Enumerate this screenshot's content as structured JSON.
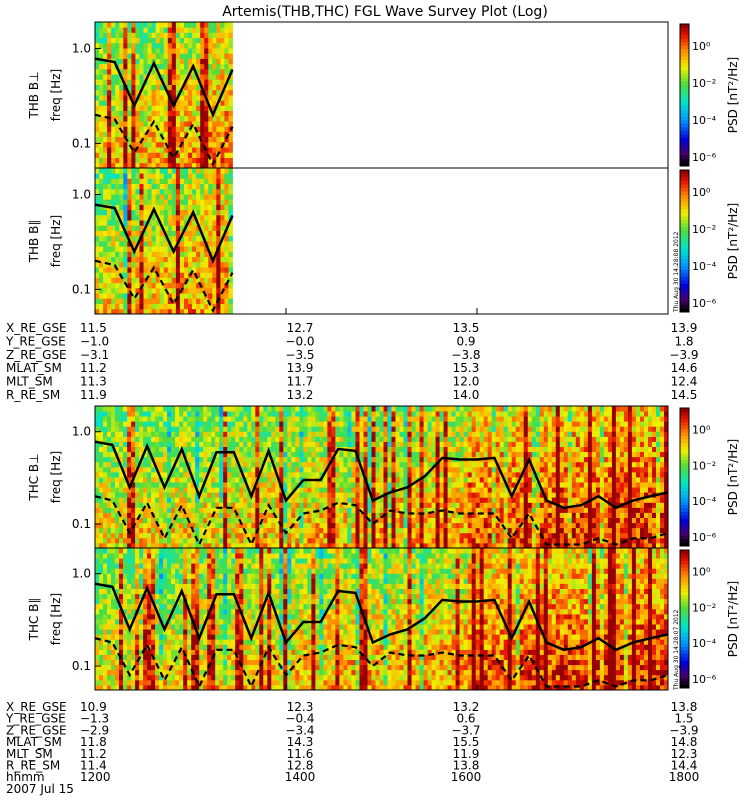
{
  "title": "Artemis(THB,THC) FGL Wave Survey Plot (Log)",
  "colorbar": {
    "label": "PSD [nT²/Hz]",
    "ticks": [
      "10⁰",
      "10⁻²",
      "10⁻⁴",
      "10⁻⁶"
    ],
    "tick_values": [
      0,
      -2,
      -4,
      -6
    ],
    "range_log10": [
      -6.5,
      1.2
    ]
  },
  "freq_axis": {
    "ylabel": "freq [Hz]",
    "ticks": [
      "1.0",
      "0.1"
    ],
    "tick_values": [
      1.0,
      0.1
    ],
    "ylim": [
      0.055,
      1.9
    ],
    "scale": "log"
  },
  "panels": [
    {
      "name": "THB B⊥",
      "ylabel": "THB B⊥",
      "data_fraction": 0.24
    },
    {
      "name": "THB B∥",
      "ylabel": "THB B∥",
      "data_fraction": 0.24
    },
    {
      "name": "THC B⊥",
      "ylabel": "THC B⊥",
      "data_fraction": 1.0
    },
    {
      "name": "THC B∥",
      "ylabel": "THC B∥",
      "data_fraction": 1.0
    }
  ],
  "stamps": [
    "Thu Aug 30 14:28:08 2012",
    "Thu Aug 30 14:28:07 2012"
  ],
  "ephem_thb": {
    "rows": [
      [
        "X_RE_GSE",
        "11.5",
        "12.7",
        "13.5",
        "13.9"
      ],
      [
        "Y_RE_GSE",
        "−1.0",
        "−0.0",
        "0.9",
        "1.8"
      ],
      [
        "Z_RE_GSE",
        "−3.1",
        "−3.5",
        "−3.8",
        "−3.9"
      ],
      [
        "MLAT_SM",
        "11.2",
        "13.9",
        "15.3",
        "14.6"
      ],
      [
        "MLT_SM",
        "11.3",
        "11.7",
        "12.0",
        "12.4"
      ],
      [
        "R_RE_SM",
        "11.9",
        "13.2",
        "14.0",
        "14.5"
      ]
    ]
  },
  "ephem_thc": {
    "rows": [
      [
        "X_RE_GSE",
        "10.9",
        "12.3",
        "13.2",
        "13.8"
      ],
      [
        "Y_RE_GSE",
        "−1.3",
        "−0.4",
        "0.6",
        "1.5"
      ],
      [
        "Z_RE_GSE",
        "−2.9",
        "−3.4",
        "−3.7",
        "−3.9"
      ],
      [
        "MLAT_SM",
        "11.8",
        "14.3",
        "15.5",
        "14.8"
      ],
      [
        "MLT_SM",
        "11.2",
        "11.6",
        "11.9",
        "12.3"
      ],
      [
        "R_RE_SM",
        "11.4",
        "12.8",
        "13.8",
        "14.4"
      ],
      [
        "hhmm",
        "1200",
        "1400",
        "1600",
        "1800"
      ]
    ],
    "date": "2007 Jul 15"
  },
  "chart_data": {
    "type": "heatmap",
    "title": "Artemis(THB,THC) FGL Wave Survey Plot (Log)",
    "x_unit": "UT hhmm",
    "x_ticks": [
      "1200",
      "1400",
      "1600",
      "1800"
    ],
    "xlim_hours": [
      12.0,
      18.0
    ],
    "date": "2007 Jul 15",
    "ylabel": "freq [Hz]",
    "yscale": "log",
    "ylim": [
      0.055,
      1.9
    ],
    "z_label": "PSD [nT²/Hz]",
    "z_scale": "log",
    "z_range_log10": [
      -6.5,
      1.2
    ],
    "thb_coverage_hours": [
      12.0,
      13.35
    ],
    "thc_coverage_hours": [
      12.0,
      18.0
    ],
    "overlay_lines": {
      "solid_hz": [
        0.78,
        0.72,
        0.25,
        0.7,
        0.25,
        0.65,
        0.2,
        0.6,
        0.6,
        0.2,
        0.62,
        0.18,
        0.3,
        0.3,
        0.65,
        0.62,
        0.18,
        0.22,
        0.25,
        0.33,
        0.52,
        0.5,
        0.5,
        0.52,
        0.2,
        0.5,
        0.18,
        0.15,
        0.16,
        0.2,
        0.15,
        0.18,
        0.2,
        0.22
      ],
      "dashed_hz": [
        0.2,
        0.18,
        0.08,
        0.17,
        0.07,
        0.16,
        0.06,
        0.15,
        0.15,
        0.06,
        0.16,
        0.08,
        0.13,
        0.14,
        0.17,
        0.16,
        0.1,
        0.14,
        0.13,
        0.13,
        0.14,
        0.13,
        0.13,
        0.13,
        0.07,
        0.13,
        0.06,
        0.06,
        0.06,
        0.07,
        0.06,
        0.07,
        0.07,
        0.08
      ]
    }
  }
}
